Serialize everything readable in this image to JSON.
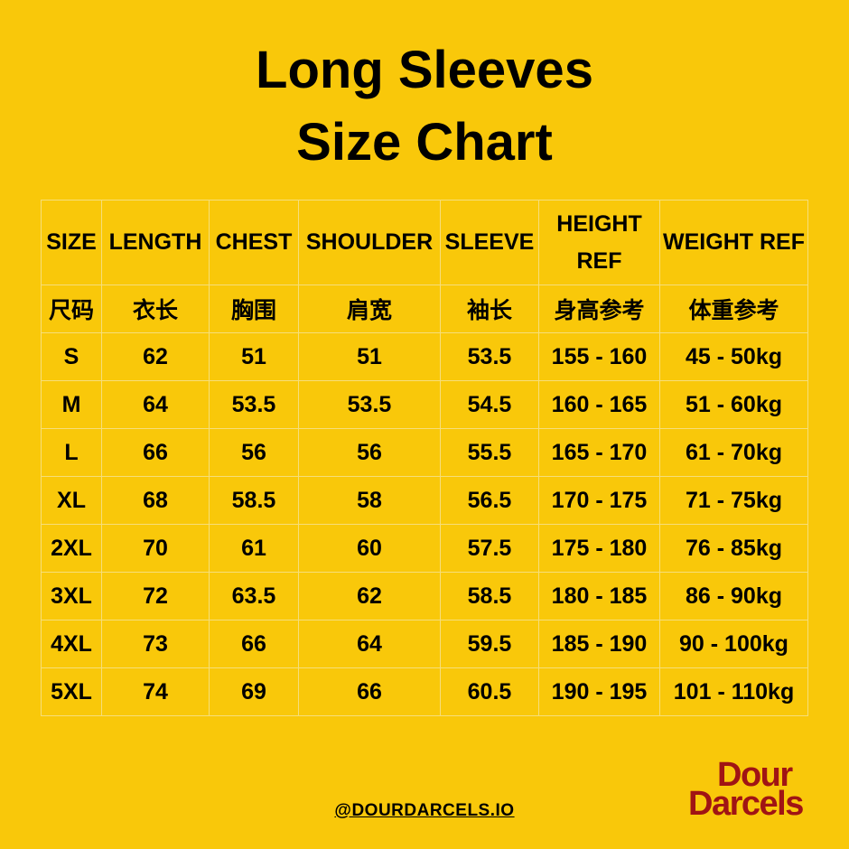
{
  "title": {
    "line1": "Long Sleeves",
    "line2": "Size Chart"
  },
  "table": {
    "headers_en": [
      "SIZE",
      "LENGTH",
      "CHEST",
      "SHOULDER",
      "SLEEVE",
      "HEIGHT REF",
      "WEIGHT REF"
    ],
    "headers_zh": [
      "尺码",
      "衣长",
      "胸围",
      "肩宽",
      "袖长",
      "身高参考",
      "体重参考"
    ],
    "rows": [
      [
        "S",
        "62",
        "51",
        "51",
        "53.5",
        "155 - 160",
        "45 - 50kg"
      ],
      [
        "M",
        "64",
        "53.5",
        "53.5",
        "54.5",
        "160 - 165",
        "51 - 60kg"
      ],
      [
        "L",
        "66",
        "56",
        "56",
        "55.5",
        "165 - 170",
        "61 - 70kg"
      ],
      [
        "XL",
        "68",
        "58.5",
        "58",
        "56.5",
        "170 - 175",
        "71 - 75kg"
      ],
      [
        "2XL",
        "70",
        "61",
        "60",
        "57.5",
        "175 - 180",
        "76 - 85kg"
      ],
      [
        "3XL",
        "72",
        "63.5",
        "62",
        "58.5",
        "180 - 185",
        "86 - 90kg"
      ],
      [
        "4XL",
        "73",
        "66",
        "64",
        "59.5",
        "185 - 190",
        "90 - 100kg"
      ],
      [
        "5XL",
        "74",
        "69",
        "66",
        "60.5",
        "190 - 195",
        "101 - 110kg"
      ]
    ]
  },
  "footer": {
    "handle": "@DOURDARCELS.IO"
  },
  "logo": {
    "line1": "Dour",
    "line2": "Darcels"
  },
  "colors": {
    "background": "#F9C80A",
    "logo": "#A01414",
    "grid": "#F6DE7A"
  }
}
